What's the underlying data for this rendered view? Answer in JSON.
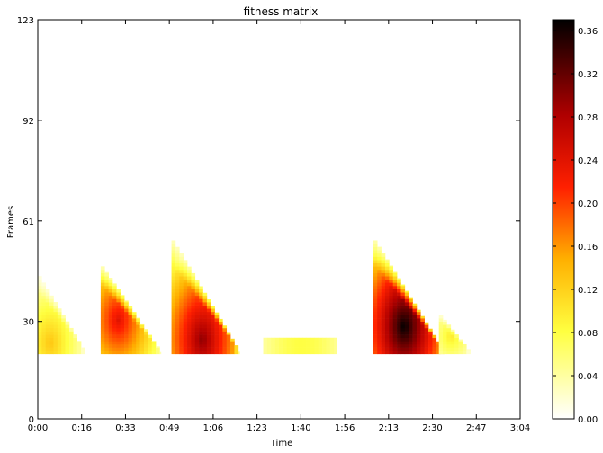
{
  "chart_data": {
    "type": "heatmap",
    "title": "fitness matrix",
    "xlabel": "Time",
    "ylabel": "Frames",
    "x_tick_labels": [
      "0:00",
      "0:16",
      "0:33",
      "0:49",
      "1:06",
      "1:23",
      "1:40",
      "1:56",
      "2:13",
      "2:30",
      "2:47",
      "3:04"
    ],
    "y_tick_labels": [
      "0",
      "30",
      "61",
      "92",
      "123"
    ],
    "y_ticks": [
      0,
      30,
      61,
      92,
      123
    ],
    "xlim_seconds": [
      0,
      184
    ],
    "ylim": [
      0,
      123
    ],
    "colorbar": {
      "ticks": [
        "0.00",
        "0.04",
        "0.08",
        "0.12",
        "0.16",
        "0.20",
        "0.24",
        "0.28",
        "0.32",
        "0.36"
      ],
      "range": [
        0,
        0.37
      ],
      "colormap": "hot_r"
    },
    "regions": [
      {
        "x0": 0,
        "x1": 18,
        "y_min": 20,
        "y_top_start": 44,
        "peak": 0.13,
        "core_x": 4,
        "core_y": 23
      },
      {
        "x0": 24,
        "x1": 47,
        "y_min": 20,
        "y_top_start": 47,
        "peak": 0.24,
        "core_x": 30,
        "core_y": 30
      },
      {
        "x0": 51,
        "x1": 77,
        "y_min": 20,
        "y_top_start": 55,
        "peak": 0.3,
        "core_x": 62,
        "core_y": 24
      },
      {
        "x0": 86,
        "x1": 114,
        "y_min": 20,
        "y_top_start": 25,
        "peak": 0.08,
        "flat": true
      },
      {
        "x0": 128,
        "x1": 155,
        "y_min": 20,
        "y_top_start": 55,
        "peak": 0.37,
        "core_x": 139,
        "core_y": 28
      },
      {
        "x0": 153,
        "x1": 165,
        "y_min": 20,
        "y_top_start": 32,
        "peak": 0.1,
        "core_x": 157,
        "core_y": 25
      }
    ]
  },
  "colors": {
    "frame": "#000000",
    "background": "#ffffff"
  }
}
